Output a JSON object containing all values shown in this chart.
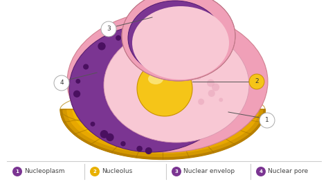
{
  "bg_color": "#ffffff",
  "legend_items": [
    {
      "num": "1",
      "label": "Nucleoplasm",
      "color": "#7B3FA0"
    },
    {
      "num": "2",
      "label": "Nucleolus",
      "color": "#D4A000"
    },
    {
      "num": "3",
      "label": "Nuclear envelop",
      "color": "#7B3FA0"
    },
    {
      "num": "4",
      "label": "Nuclear pore",
      "color": "#7B3FA0"
    }
  ],
  "colors": {
    "pink_outer": "#F0A0B8",
    "pink_inner": "#F5B8C8",
    "pink_pale": "#F8C8D4",
    "purple_dark": "#7B3592",
    "purple_mid": "#8B45A2",
    "yellow_bright": "#F5C518",
    "yellow_mid": "#E8B000",
    "yellow_dark": "#C89000",
    "yellow_light": "#FAE060",
    "golgi_outer": "#C89000",
    "golgi_mid": "#E8A800",
    "golgi_inner": "#FAD840",
    "dot_dark": "#4A1060",
    "callout_line": "#555555",
    "circle_border": "#aaaaaa",
    "legend_sep": "#cccccc"
  }
}
